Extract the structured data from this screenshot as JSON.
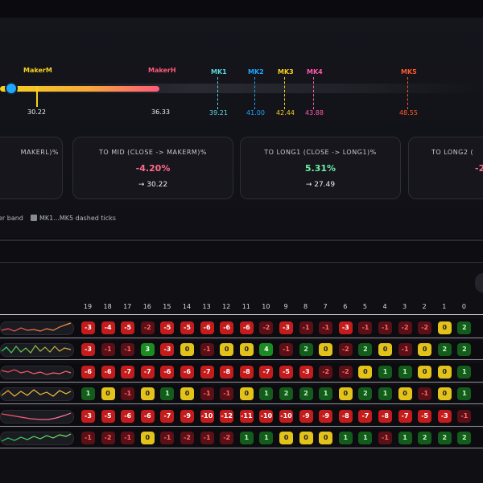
{
  "colors": {
    "accent_yellow": "#f5d21e",
    "accent_pink": "#ff5a7a",
    "knob": "#1ea7ff",
    "neg": "#ff6a8a",
    "pos": "#6ef0a6"
  },
  "track": {
    "maker_m": {
      "label": "MakerM",
      "value": "30.22",
      "color": "#f5d21e"
    },
    "maker_h": {
      "label": "MakerH",
      "value": "36.33",
      "color": "#ff5a7a"
    },
    "marks": [
      {
        "label": "MK1",
        "value": "39.21",
        "color": "#5ad7e0"
      },
      {
        "label": "MK2",
        "value": "41.00",
        "color": "#1ea7ff"
      },
      {
        "label": "MK3",
        "value": "42.44",
        "color": "#f5d21e"
      },
      {
        "label": "MK4",
        "value": "43.88",
        "color": "#ff5ab0"
      },
      {
        "label": "MK5",
        "value": "48.55",
        "color": "#ff5a2a"
      }
    ]
  },
  "cards": [
    {
      "title": "MAKERL)%",
      "pct": "",
      "value": ""
    },
    {
      "title": "TO MID (CLOSE -> MAKERM)%",
      "pct": "-4.20%",
      "value": "→ 30.22"
    },
    {
      "title": "TO LONG1 (CLOSE -> LONG1)%",
      "pct": "5.31%",
      "value": "→ 27.49"
    },
    {
      "title": "TO LONG2 (",
      "pct": "-2",
      "value": ""
    }
  ],
  "legend": {
    "band": "er band",
    "dashed": "MK1...MK5 dashed ticks"
  },
  "columns": [
    "19",
    "18",
    "17",
    "16",
    "15",
    "14",
    "13",
    "12",
    "11",
    "10",
    "9",
    "8",
    "7",
    "6",
    "5",
    "4",
    "3",
    "2",
    "1",
    "0"
  ],
  "rows": [
    {
      "spark": "red-to-orange",
      "cells": [
        "-3",
        "-4",
        "-5",
        "-2",
        "-5",
        "-5",
        "-6",
        "-6",
        "-6",
        "-2",
        "-3",
        "-1",
        "-1",
        "-3",
        "-1",
        "-1",
        "-2",
        "-2",
        "0",
        "2"
      ]
    },
    {
      "spark": "green-orange",
      "cells": [
        "-3",
        "-1",
        "-1",
        "3",
        "-3",
        "0",
        "-1",
        "0",
        "0",
        "4",
        "-1",
        "2",
        "0",
        "-2",
        "2",
        "0",
        "-1",
        "0",
        "2",
        "2"
      ]
    },
    {
      "spark": "red",
      "cells": [
        "-6",
        "-6",
        "-7",
        "-7",
        "-6",
        "-6",
        "-7",
        "-8",
        "-8",
        "-7",
        "-5",
        "-3",
        "-2",
        "-2",
        "0",
        "1",
        "1",
        "0",
        "0",
        "1"
      ]
    },
    {
      "spark": "orange",
      "cells": [
        "1",
        "0",
        "-1",
        "0",
        "1",
        "0",
        "-1",
        "-1",
        "0",
        "1",
        "2",
        "2",
        "1",
        "0",
        "2",
        "1",
        "0",
        "-1",
        "0",
        "1"
      ]
    },
    {
      "spark": "red-to-pink",
      "cells": [
        "-3",
        "-5",
        "-6",
        "-6",
        "-7",
        "-9",
        "-10",
        "-12",
        "-11",
        "-10",
        "-10",
        "-9",
        "-9",
        "-8",
        "-7",
        "-8",
        "-7",
        "-5",
        "-3",
        "-1"
      ]
    },
    {
      "spark": "green",
      "cells": [
        "-1",
        "-2",
        "-1",
        "0",
        "-1",
        "-2",
        "-1",
        "-2",
        "1",
        "1",
        "0",
        "0",
        "0",
        "1",
        "1",
        "-1",
        "1",
        "2",
        "2",
        "2"
      ]
    }
  ]
}
